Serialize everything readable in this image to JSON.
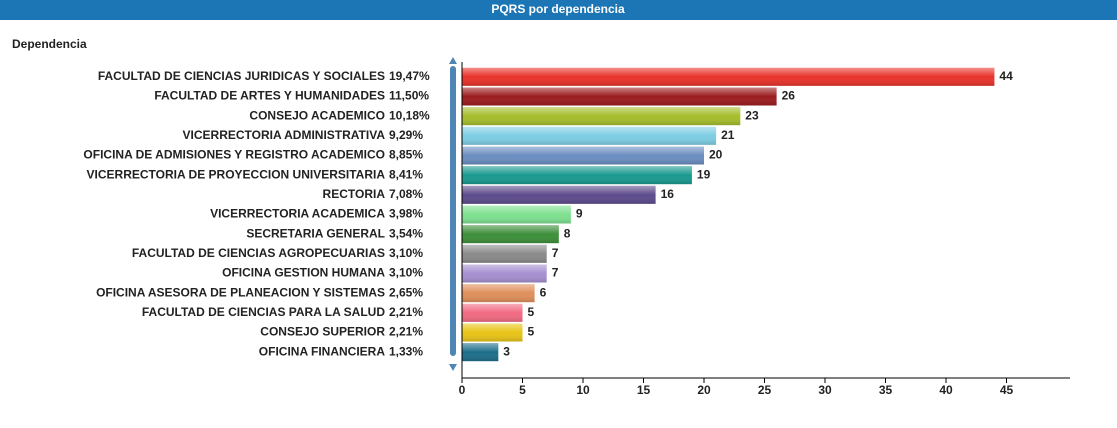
{
  "chart_data": {
    "type": "bar",
    "orientation": "horizontal",
    "title": "PQRS por dependencia",
    "y_label": "Dependencia",
    "categories": [
      "FACULTAD DE CIENCIAS JURIDICAS Y SOCIALES",
      "FACULTAD DE ARTES Y HUMANIDADES",
      "CONSEJO ACADEMICO",
      "VICERRECTORIA ADMINISTRATIVA",
      "OFICINA DE ADMISIONES Y REGISTRO ACADEMICO",
      "VICERRECTORIA DE PROYECCION UNIVERSITARIA",
      "RECTORIA",
      "VICERRECTORIA ACADEMICA",
      "SECRETARIA GENERAL",
      "FACULTAD DE CIENCIAS AGROPECUARIAS",
      "OFICINA GESTION HUMANA",
      "OFICINA ASESORA DE PLANEACION Y SISTEMAS",
      "FACULTAD DE CIENCIAS PARA LA SALUD",
      "CONSEJO SUPERIOR",
      "OFICINA FINANCIERA"
    ],
    "percent_labels": [
      "19,47%",
      "11,50%",
      "10,18%",
      "9,29%",
      "8,85%",
      "8,41%",
      "7,08%",
      "3,98%",
      "3,54%",
      "3,10%",
      "3,10%",
      "2,65%",
      "2,21%",
      "2,21%",
      "1,33%"
    ],
    "values": [
      44,
      26,
      23,
      21,
      20,
      19,
      16,
      9,
      8,
      7,
      7,
      6,
      5,
      5,
      3
    ],
    "colors": [
      "#e8332a",
      "#9b1c1f",
      "#a5bd2b",
      "#7ccde3",
      "#6b8dc0",
      "#1a9a8f",
      "#5d4b8c",
      "#7de08f",
      "#3d8f3a",
      "#8a8a8a",
      "#a68fd0",
      "#df8f5a",
      "#f26a82",
      "#e8c417",
      "#1d6e8a"
    ],
    "xlim": [
      0,
      50
    ],
    "xticks": [
      0,
      5,
      10,
      15,
      20,
      25,
      30,
      35,
      40,
      45
    ]
  }
}
